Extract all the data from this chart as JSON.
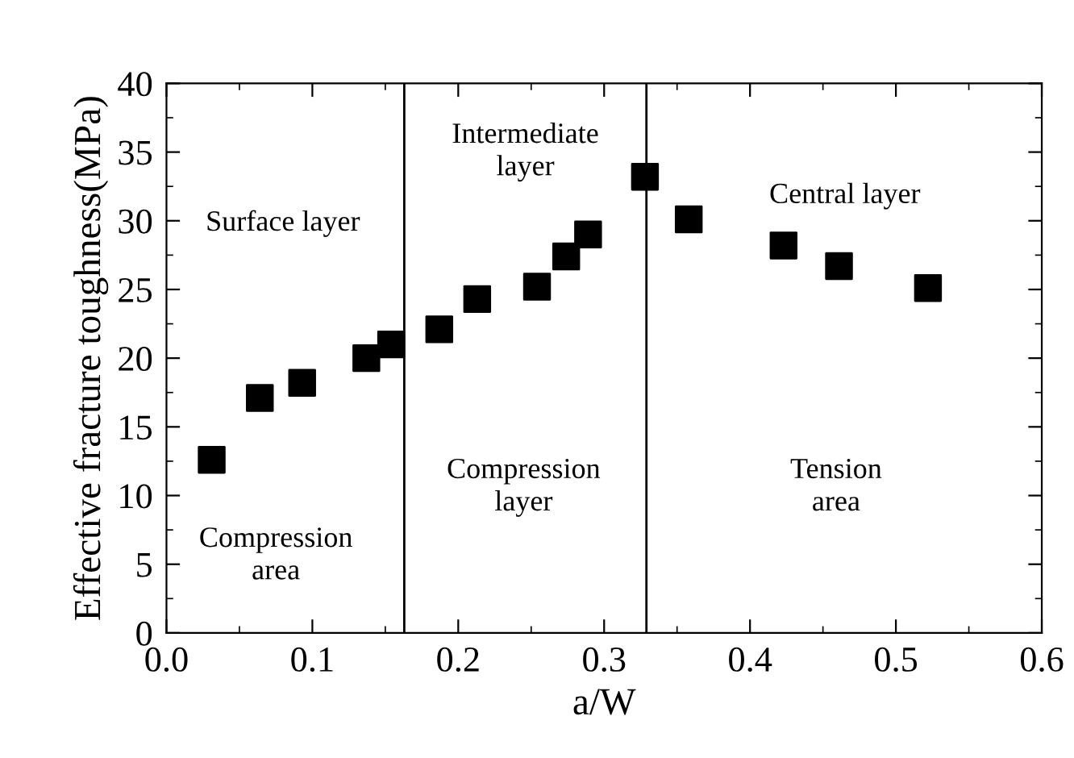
{
  "chart_data": {
    "type": "scatter",
    "xlabel": "a/W",
    "ylabel": "Effective fracture toughness(MPa)",
    "x": [
      0.031,
      0.064,
      0.093,
      0.137,
      0.154,
      0.187,
      0.213,
      0.254,
      0.274,
      0.289,
      0.328,
      0.358,
      0.423,
      0.461,
      0.522
    ],
    "series": [
      {
        "color": "#000000",
        "values": [
          12.6,
          17.1,
          18.2,
          20.0,
          21.0,
          22.1,
          24.3,
          25.2,
          27.4,
          29.0,
          33.2,
          30.1,
          28.2,
          26.7,
          25.1
        ]
      }
    ],
    "marker": "square",
    "xlim": [
      0,
      0.6
    ],
    "ylim": [
      0,
      40
    ],
    "xticks": [
      {
        "value": 0,
        "label": "0.0"
      },
      0.1,
      0.2,
      0.3,
      0.4,
      0.5,
      0.6
    ],
    "yticks": [
      0,
      5,
      10,
      15,
      20,
      25,
      30,
      35,
      40
    ],
    "ref_lines": [
      {
        "axis": "x",
        "value": 0.163,
        "color": "#000000"
      },
      {
        "axis": "x",
        "value": 0.329,
        "color": "#000000"
      }
    ],
    "annotations": [
      "Surface layer",
      "Compression\narea",
      "Intermediate\nlayer",
      "Compression\nlayer",
      "Central layer",
      "Tension\narea"
    ]
  }
}
